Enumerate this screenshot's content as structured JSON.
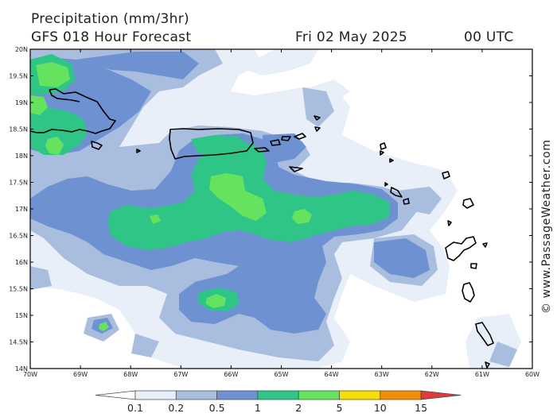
{
  "header": {
    "title": "Precipitation (mm/3hr)",
    "subtitle": "GFS 018 Hour Forecast",
    "date": "Fri 02 May 2025",
    "time": "00 UTC"
  },
  "credit": "© www.PassageWeather.com",
  "map": {
    "lat_labels": [
      "20N",
      "19.5N",
      "19N",
      "18.5N",
      "18N",
      "17.5N",
      "17N",
      "16.5N",
      "16N",
      "15.5N",
      "15N",
      "14.5N",
      "14N"
    ],
    "lon_labels": [
      "70W",
      "69W",
      "68W",
      "67W",
      "66W",
      "65W",
      "64W",
      "63W",
      "62W",
      "61W",
      "60W"
    ],
    "lat_range": [
      14,
      20
    ],
    "lon_range": [
      -70,
      -60
    ]
  },
  "legend": {
    "labels": [
      "0.1",
      "0.2",
      "0.5",
      "1",
      "2",
      "5",
      "10",
      "15"
    ],
    "colors": [
      "#ffffff",
      "#e8eff9",
      "#a9bddf",
      "#6e91d2",
      "#2ec586",
      "#66e35e",
      "#f5df0a",
      "#f28d0b",
      "#e03a3a"
    ]
  }
}
